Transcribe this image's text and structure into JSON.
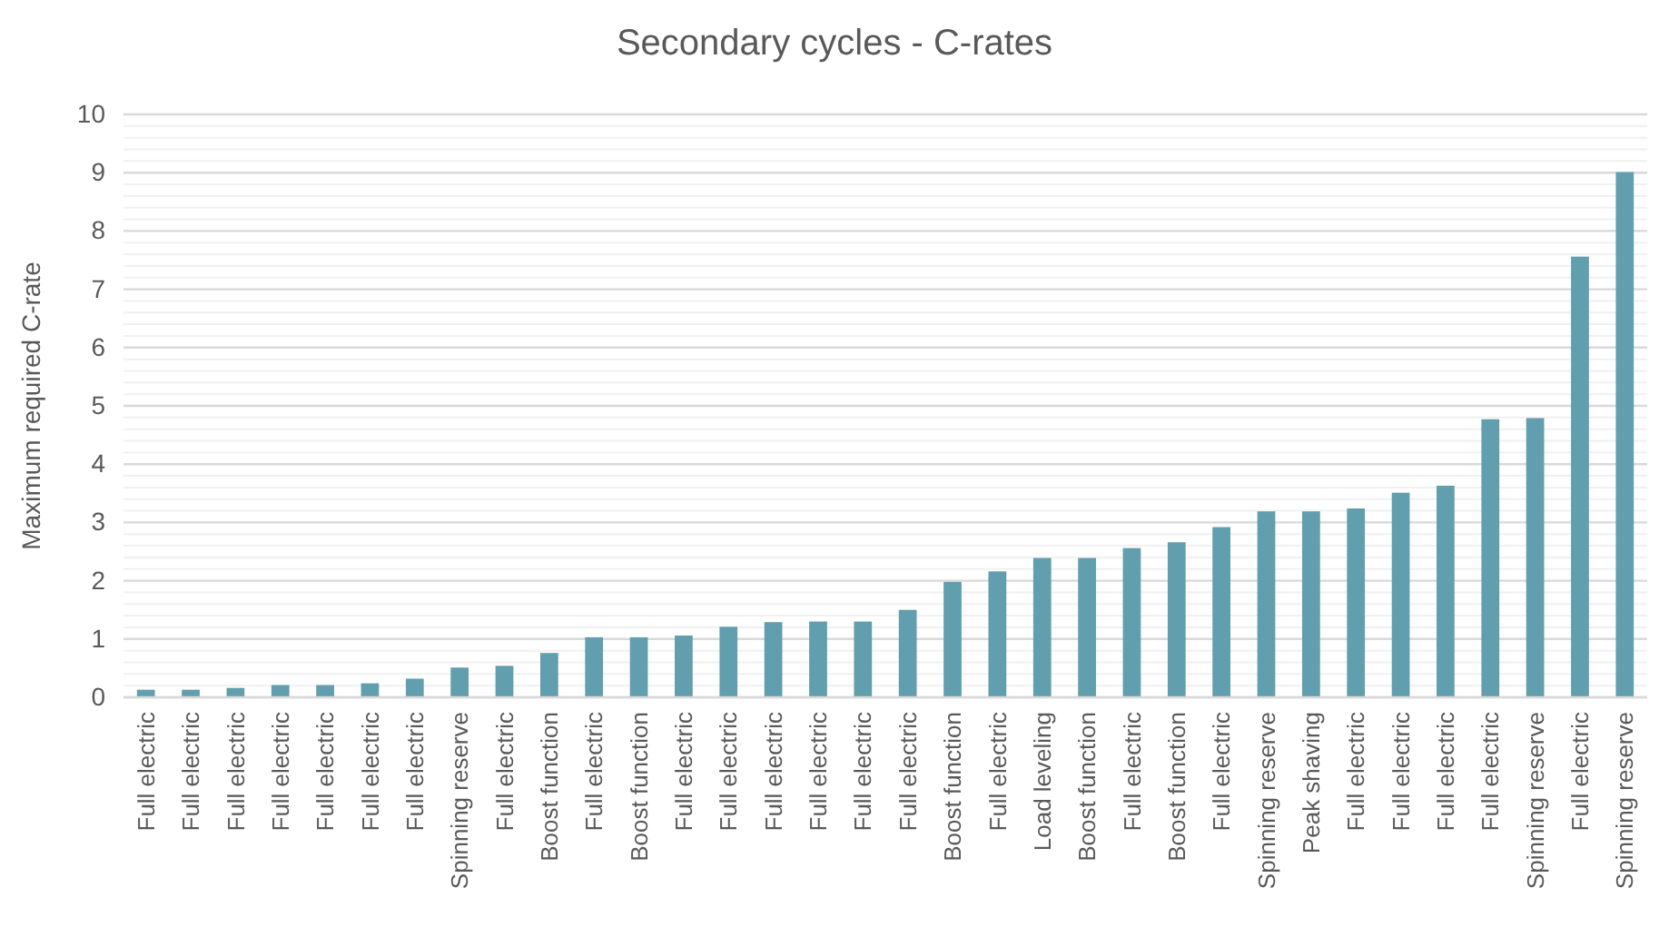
{
  "chart_data": {
    "type": "bar",
    "title": "Secondary cycles - C-rates",
    "ylabel": "Maximum required C-rate",
    "categories": [
      "Full electric",
      "Full electric",
      "Full electric",
      "Full electric",
      "Full electric",
      "Full electric",
      "Full electric",
      "Spinning reserve",
      "Full electric",
      "Boost function",
      "Full electric",
      "Boost function",
      "Full electric",
      "Full electric",
      "Full electric",
      "Full electric",
      "Full electric",
      "Full electric",
      "Boost function",
      "Full electric",
      "Load leveling",
      "Boost function",
      "Full electric",
      "Boost function",
      "Full electric",
      "Spinning reserve",
      "Peak shaving",
      "Full electric",
      "Full electric",
      "Full electric",
      "Full electric",
      "Spinning reserve",
      "Full electric",
      "Spinning reserve"
    ],
    "values": [
      0.13,
      0.13,
      0.16,
      0.21,
      0.21,
      0.24,
      0.32,
      0.51,
      0.54,
      0.76,
      1.03,
      1.03,
      1.06,
      1.21,
      1.29,
      1.3,
      1.3,
      1.5,
      1.98,
      2.16,
      2.39,
      2.39,
      2.56,
      2.66,
      2.92,
      3.19,
      3.19,
      3.24,
      3.51,
      3.63,
      4.77,
      4.79,
      7.56,
      9.01
    ],
    "color": "#619eae",
    "ylim": [
      0,
      10
    ],
    "yticks": [
      0,
      {
        "value": 0.2,
        "label": null
      },
      {
        "value": 0.4,
        "label": null
      },
      {
        "value": 0.6,
        "label": null
      },
      {
        "value": 0.8,
        "label": null
      },
      1,
      {
        "value": 1.2,
        "label": null
      },
      {
        "value": 1.4,
        "label": null
      },
      {
        "value": 1.6,
        "label": null
      },
      {
        "value": 1.8,
        "label": null
      },
      2,
      {
        "value": 2.2,
        "label": null
      },
      {
        "value": 2.4,
        "label": null
      },
      {
        "value": 2.6,
        "label": null
      },
      {
        "value": 2.8,
        "label": null
      },
      3,
      {
        "value": 3.2,
        "label": null
      },
      {
        "value": 3.4,
        "label": null
      },
      {
        "value": 3.6,
        "label": null
      },
      {
        "value": 3.8,
        "label": null
      },
      4,
      {
        "value": 4.2,
        "label": null
      },
      {
        "value": 4.4,
        "label": null
      },
      {
        "value": 4.6,
        "label": null
      },
      {
        "value": 4.8,
        "label": null
      },
      5,
      {
        "value": 5.2,
        "label": null
      },
      {
        "value": 5.4,
        "label": null
      },
      {
        "value": 5.6,
        "label": null
      },
      {
        "value": 5.8,
        "label": null
      },
      6,
      {
        "value": 6.2,
        "label": null
      },
      {
        "value": 6.4,
        "label": null
      },
      {
        "value": 6.6,
        "label": null
      },
      {
        "value": 6.8,
        "label": null
      },
      7,
      {
        "value": 7.2,
        "label": null
      },
      {
        "value": 7.4,
        "label": null
      },
      {
        "value": 7.6,
        "label": null
      },
      {
        "value": 7.8,
        "label": null
      },
      8,
      {
        "value": 8.2,
        "label": null
      },
      {
        "value": 8.4,
        "label": null
      },
      {
        "value": 8.6,
        "label": null
      },
      {
        "value": 8.8,
        "label": null
      },
      9,
      {
        "value": 9.2,
        "label": null
      },
      {
        "value": 9.4,
        "label": null
      },
      {
        "value": 9.6,
        "label": null
      },
      {
        "value": 9.8,
        "label": null
      },
      10
    ],
    "grid": "y"
  }
}
